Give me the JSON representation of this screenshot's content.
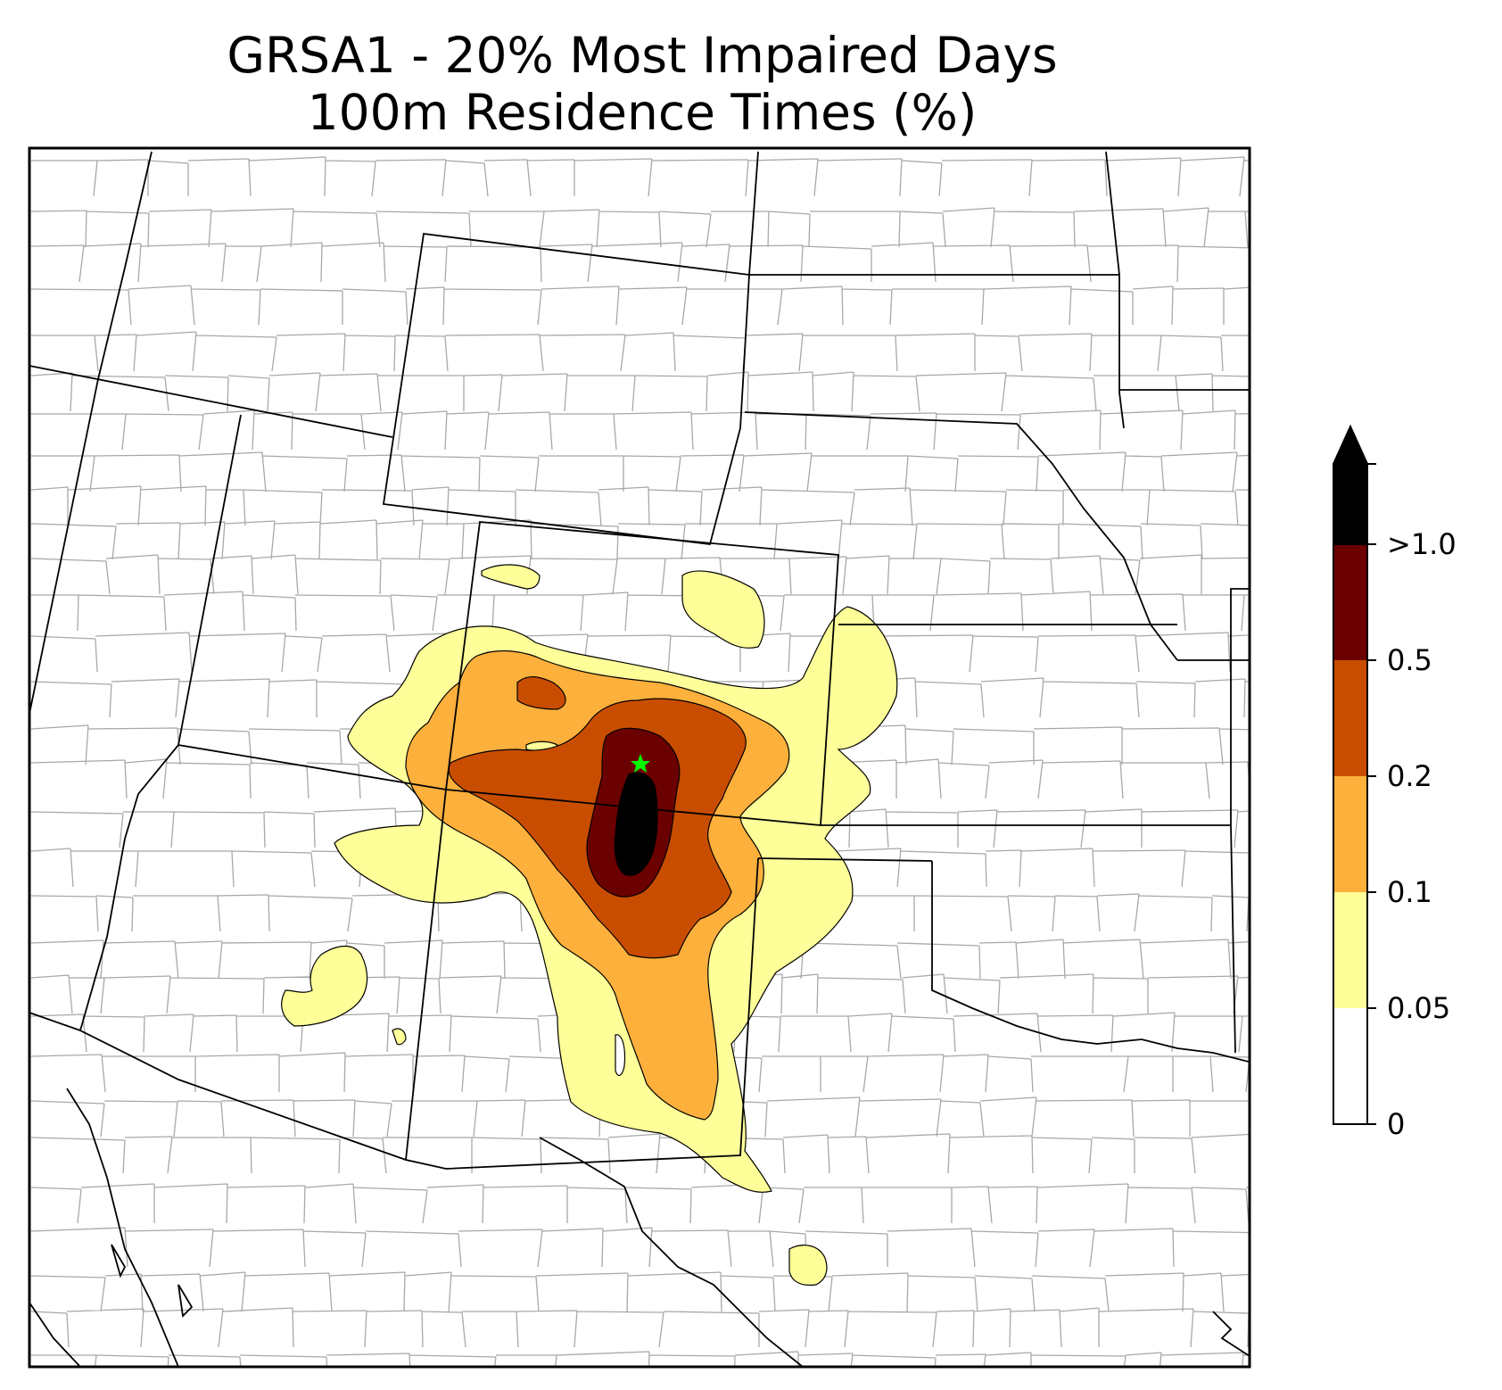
{
  "title_line1": "GRSA1 - 20% Most Impaired Days",
  "title_line2": "100m Residence Times (%)",
  "colorbar": {
    "levels": [
      {
        "from": 0,
        "to": 0.05,
        "color": "#ffffff"
      },
      {
        "from": 0.05,
        "to": 0.1,
        "color": "#ffff99"
      },
      {
        "from": 0.1,
        "to": 0.2,
        "color": "#fdb03b"
      },
      {
        "from": 0.2,
        "to": 0.5,
        "color": "#c94d00"
      },
      {
        "from": 0.5,
        "to": 1.0,
        "color": "#6b0000"
      },
      {
        "from": 1.0,
        "to": null,
        "color": "#000000"
      }
    ],
    "tick_labels": [
      "0",
      "0.05",
      "0.1",
      "0.2",
      "0.5",
      ">1.0"
    ],
    "extend": "max"
  },
  "site_marker": {
    "label_visible": false,
    "color": "#00ff00",
    "icon": "star-icon"
  },
  "colors": {
    "state_border": "#000000",
    "county_border": "#a8a8a8",
    "map_background": "#ffffff"
  }
}
